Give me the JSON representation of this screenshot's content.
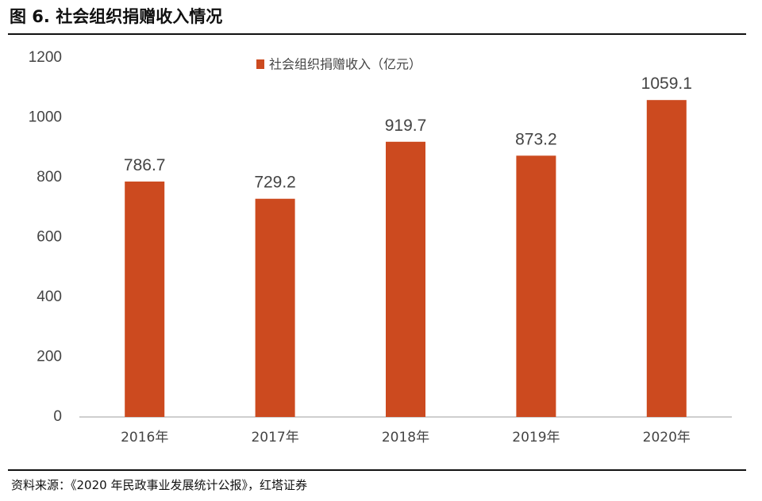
{
  "figure": {
    "title": "图 6. 社会组织捐赠收入情况",
    "source": "资料来源：《2020 年民政事业发展统计公报》，红塔证券"
  },
  "colors": {
    "bar": "#CC4A1F",
    "axis": "#BFBFBF",
    "text": "#444444"
  },
  "chart_data": {
    "type": "bar",
    "title": "",
    "xlabel": "",
    "ylabel": "",
    "categories": [
      "2016年",
      "2017年",
      "2018年",
      "2019年",
      "2020年"
    ],
    "series": [
      {
        "name": "社会组织捐赠收入（亿元）",
        "values": [
          786.7,
          729.2,
          919.7,
          873.2,
          1059.1
        ]
      }
    ],
    "data_labels": [
      "786.7",
      "729.2",
      "919.7",
      "873.2",
      "1059.1"
    ],
    "ylim": [
      0,
      1200
    ],
    "yticks": [
      0,
      200,
      400,
      600,
      800,
      1000,
      1200
    ],
    "grid": false,
    "legend_position": "top-center"
  }
}
